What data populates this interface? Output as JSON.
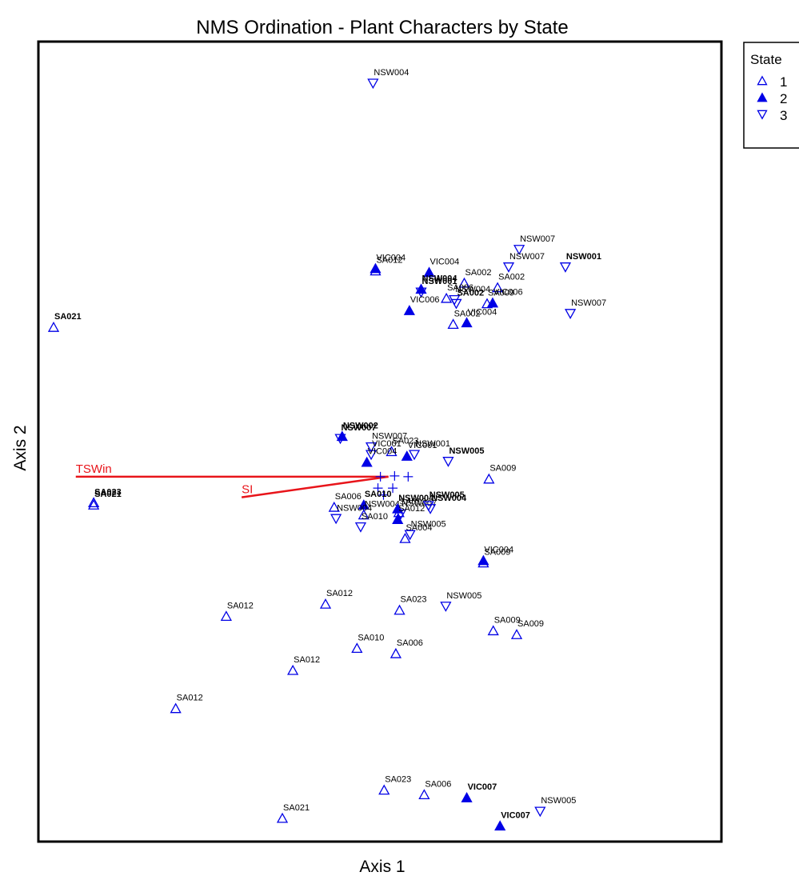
{
  "chart_data": {
    "type": "scatter",
    "title": "NMS Ordination - Plant Characters by State",
    "xlabel": "Axis 1",
    "ylabel": "Axis 2",
    "legend": {
      "title": "State",
      "placement": "top-right-outside",
      "entries": [
        {
          "label": "1",
          "marker": "triangle-up-open"
        },
        {
          "label": "2",
          "marker": "triangle-up-filled"
        },
        {
          "label": "3",
          "marker": "triangle-down-open"
        }
      ]
    },
    "colors": {
      "points": "#0000e6",
      "vectors": "#e8141a",
      "frame": "#000000"
    },
    "xlim": [
      0,
      1
    ],
    "ylim": [
      0,
      1
    ],
    "points": [
      {
        "x": 0.518,
        "y": 0.981,
        "state": "3",
        "label": "NSW004"
      },
      {
        "x": 0.755,
        "y": 0.763,
        "state": "3",
        "label": "NSW007"
      },
      {
        "x": 0.738,
        "y": 0.74,
        "state": "3",
        "label": "NSW007"
      },
      {
        "x": 0.83,
        "y": 0.74,
        "state": "3",
        "label": "NSW001",
        "bold": true
      },
      {
        "x": 0.838,
        "y": 0.679,
        "state": "3",
        "label": "NSW007"
      },
      {
        "x": 0.522,
        "y": 0.735,
        "state": "1",
        "label": "SA012"
      },
      {
        "x": 0.522,
        "y": 0.738,
        "state": "2",
        "label": "VIC004"
      },
      {
        "x": 0.609,
        "y": 0.733,
        "state": "2",
        "label": "VIC004"
      },
      {
        "x": 0.666,
        "y": 0.719,
        "state": "1",
        "label": "SA002"
      },
      {
        "x": 0.72,
        "y": 0.713,
        "state": "1",
        "label": "SA002"
      },
      {
        "x": 0.596,
        "y": 0.707,
        "state": "3",
        "label": "NSW001",
        "bold": true
      },
      {
        "x": 0.596,
        "y": 0.711,
        "state": "2",
        "label": "NSW004",
        "bold": true
      },
      {
        "x": 0.65,
        "y": 0.697,
        "state": "3",
        "label": "NSW004"
      },
      {
        "x": 0.653,
        "y": 0.692,
        "state": "3",
        "label": "SA002",
        "bold": true
      },
      {
        "x": 0.703,
        "y": 0.692,
        "state": "1",
        "label": "SA009"
      },
      {
        "x": 0.712,
        "y": 0.693,
        "state": "2",
        "label": "VIC006"
      },
      {
        "x": 0.637,
        "y": 0.699,
        "state": "1",
        "label": "SA006"
      },
      {
        "x": 0.577,
        "y": 0.683,
        "state": "2",
        "label": "VIC006"
      },
      {
        "x": 0.648,
        "y": 0.665,
        "state": "1",
        "label": "SA002"
      },
      {
        "x": 0.67,
        "y": 0.667,
        "state": "2",
        "label": "VIC004"
      },
      {
        "x": 0.0,
        "y": 0.661,
        "state": "1",
        "label": "SA021",
        "bold": true
      },
      {
        "x": 0.465,
        "y": 0.515,
        "state": "3",
        "label": "NSW007",
        "bold": true
      },
      {
        "x": 0.468,
        "y": 0.518,
        "state": "2",
        "label": "NSW002",
        "bold": true
      },
      {
        "x": 0.515,
        "y": 0.504,
        "state": "3",
        "label": "NSW007"
      },
      {
        "x": 0.548,
        "y": 0.498,
        "state": "1",
        "label": "SA023"
      },
      {
        "x": 0.515,
        "y": 0.494,
        "state": "3",
        "label": "VIC001"
      },
      {
        "x": 0.573,
        "y": 0.492,
        "state": "2",
        "label": "VIC001"
      },
      {
        "x": 0.585,
        "y": 0.494,
        "state": "3",
        "label": "NSW001"
      },
      {
        "x": 0.64,
        "y": 0.485,
        "state": "3",
        "label": "NSW005",
        "bold": true
      },
      {
        "x": 0.508,
        "y": 0.484,
        "state": "2",
        "label": "VIC004"
      },
      {
        "x": 0.706,
        "y": 0.462,
        "state": "1",
        "label": "SA009"
      },
      {
        "x": 0.065,
        "y": 0.428,
        "state": "1",
        "label": "SA021",
        "bold": true
      },
      {
        "x": 0.065,
        "y": 0.431,
        "state": "1",
        "label": "SA023",
        "bold": true
      },
      {
        "x": 0.455,
        "y": 0.425,
        "state": "1",
        "label": "SA006"
      },
      {
        "x": 0.503,
        "y": 0.428,
        "state": "2",
        "label": "SA010",
        "bold": true
      },
      {
        "x": 0.458,
        "y": 0.41,
        "state": "3",
        "label": "NSW004"
      },
      {
        "x": 0.503,
        "y": 0.415,
        "state": "1",
        "label": "NSW004"
      },
      {
        "x": 0.558,
        "y": 0.423,
        "state": "2",
        "label": "NSW004",
        "bold": true
      },
      {
        "x": 0.56,
        "y": 0.418,
        "state": "1",
        "label": "SA012"
      },
      {
        "x": 0.563,
        "y": 0.416,
        "state": "3",
        "label": "NSW007"
      },
      {
        "x": 0.608,
        "y": 0.427,
        "state": "3",
        "label": "NSW005",
        "bold": true
      },
      {
        "x": 0.611,
        "y": 0.423,
        "state": "3",
        "label": "NSW004",
        "bold": true
      },
      {
        "x": 0.498,
        "y": 0.399,
        "state": "3",
        "label": "SA010"
      },
      {
        "x": 0.558,
        "y": 0.409,
        "state": "2",
        "label": "SA012"
      },
      {
        "x": 0.57,
        "y": 0.384,
        "state": "1",
        "label": "SA004"
      },
      {
        "x": 0.578,
        "y": 0.389,
        "state": "3",
        "label": "NSW005"
      },
      {
        "x": 0.697,
        "y": 0.352,
        "state": "1",
        "label": "SA009"
      },
      {
        "x": 0.697,
        "y": 0.355,
        "state": "2",
        "label": "VIC004"
      },
      {
        "x": 0.28,
        "y": 0.282,
        "state": "1",
        "label": "SA012"
      },
      {
        "x": 0.441,
        "y": 0.298,
        "state": "1",
        "label": "SA012"
      },
      {
        "x": 0.561,
        "y": 0.29,
        "state": "1",
        "label": "SA023"
      },
      {
        "x": 0.636,
        "y": 0.295,
        "state": "3",
        "label": "NSW005"
      },
      {
        "x": 0.713,
        "y": 0.263,
        "state": "1",
        "label": "SA009"
      },
      {
        "x": 0.751,
        "y": 0.258,
        "state": "1",
        "label": "SA009"
      },
      {
        "x": 0.492,
        "y": 0.24,
        "state": "1",
        "label": "SA010"
      },
      {
        "x": 0.555,
        "y": 0.233,
        "state": "1",
        "label": "SA006"
      },
      {
        "x": 0.388,
        "y": 0.211,
        "state": "1",
        "label": "SA012"
      },
      {
        "x": 0.198,
        "y": 0.161,
        "state": "1",
        "label": "SA012"
      },
      {
        "x": 0.536,
        "y": 0.054,
        "state": "1",
        "label": "SA023"
      },
      {
        "x": 0.601,
        "y": 0.048,
        "state": "1",
        "label": "SA006"
      },
      {
        "x": 0.67,
        "y": 0.044,
        "state": "2",
        "label": "VIC007",
        "bold": true
      },
      {
        "x": 0.789,
        "y": 0.026,
        "state": "3",
        "label": "NSW005"
      },
      {
        "x": 0.371,
        "y": 0.017,
        "state": "1",
        "label": "SA021"
      },
      {
        "x": 0.724,
        "y": 0.007,
        "state": "2",
        "label": "VIC007",
        "bold": true
      }
    ],
    "centroids": [
      {
        "x": 0.53,
        "y": 0.465
      },
      {
        "x": 0.553,
        "y": 0.466
      },
      {
        "x": 0.575,
        "y": 0.465
      },
      {
        "x": 0.526,
        "y": 0.45
      },
      {
        "x": 0.55,
        "y": 0.45
      },
      {
        "x": 0.535,
        "y": 0.441
      }
    ],
    "vectors": [
      {
        "label": "TSWin",
        "from": {
          "x": 0.036,
          "y": 0.465
        },
        "to": {
          "x": 0.543,
          "y": 0.465
        }
      },
      {
        "label": "SI",
        "from": {
          "x": 0.305,
          "y": 0.438
        },
        "to": {
          "x": 0.543,
          "y": 0.465
        }
      }
    ]
  }
}
